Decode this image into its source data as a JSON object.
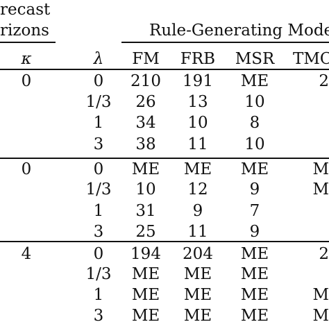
{
  "header": {
    "forecast_line1": "recast",
    "forecast_line2": "rizons",
    "group_label": "Rule-Generating Model",
    "kappa": "κ",
    "lambda": "λ",
    "models": [
      "FM",
      "FRB",
      "MSR",
      "TMC"
    ]
  },
  "rows": [
    {
      "kappa": "0",
      "lambda": "0",
      "fm": "210",
      "frb": "191",
      "msr": "ME",
      "tmc": "2"
    },
    {
      "kappa": "",
      "lambda": "1/3",
      "fm": "26",
      "frb": "13",
      "msr": "10",
      "tmc": ""
    },
    {
      "kappa": "",
      "lambda": "1",
      "fm": "34",
      "frb": "10",
      "msr": "8",
      "tmc": ""
    },
    {
      "kappa": "",
      "lambda": "3",
      "fm": "38",
      "frb": "11",
      "msr": "10",
      "tmc": ""
    },
    {
      "kappa": "0",
      "lambda": "0",
      "fm": "ME",
      "frb": "ME",
      "msr": "ME",
      "tmc": "M"
    },
    {
      "kappa": "",
      "lambda": "1/3",
      "fm": "10",
      "frb": "12",
      "msr": "9",
      "tmc": "M"
    },
    {
      "kappa": "",
      "lambda": "1",
      "fm": "31",
      "frb": "9",
      "msr": "7",
      "tmc": ""
    },
    {
      "kappa": "",
      "lambda": "3",
      "fm": "25",
      "frb": "11",
      "msr": "9",
      "tmc": ""
    },
    {
      "kappa": "4",
      "lambda": "0",
      "fm": "194",
      "frb": "204",
      "msr": "ME",
      "tmc": "2"
    },
    {
      "kappa": "",
      "lambda": "1/3",
      "fm": "ME",
      "frb": "ME",
      "msr": "ME",
      "tmc": ""
    },
    {
      "kappa": "",
      "lambda": "1",
      "fm": "ME",
      "frb": "ME",
      "msr": "ME",
      "tmc": "M"
    },
    {
      "kappa": "",
      "lambda": "3",
      "fm": "ME",
      "frb": "ME",
      "msr": "ME",
      "tmc": "M"
    }
  ]
}
